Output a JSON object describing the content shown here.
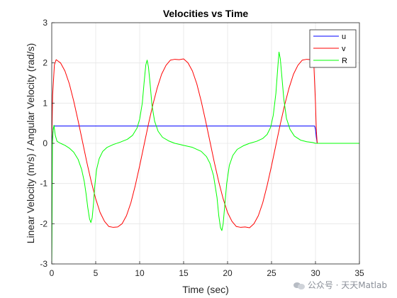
{
  "chart_data": {
    "type": "line",
    "title": "Velocities vs Time",
    "xlabel": "Time (sec)",
    "ylabel": "Linear Velocity (m/s) / Angular Velocity (rad/s)",
    "xlim": [
      0,
      35
    ],
    "ylim": [
      -3,
      3
    ],
    "xticks": [
      0,
      5,
      10,
      15,
      20,
      25,
      30,
      35
    ],
    "yticks": [
      -3,
      -2,
      -1,
      0,
      1,
      2,
      3
    ],
    "grid": true,
    "legend_position": "top-right",
    "series": [
      {
        "name": "u",
        "color": "#0000ff",
        "x": [
          0,
          0.2,
          0.3,
          29.9,
          30.0,
          30.1,
          30.2,
          35
        ],
        "y": [
          0,
          0.4,
          0.43,
          0.43,
          0.35,
          0.15,
          0.0,
          0.0
        ]
      },
      {
        "name": "v",
        "color": "#ff0000",
        "x": [
          0,
          0.1,
          0.3,
          0.5,
          1.0,
          1.5,
          2.0,
          2.5,
          3.0,
          3.5,
          4.0,
          4.5,
          5.0,
          5.5,
          6.0,
          6.5,
          7.0,
          7.5,
          8.0,
          8.5,
          9.0,
          9.5,
          10.0,
          10.5,
          11.0,
          11.5,
          12.0,
          12.5,
          13.0,
          13.5,
          14.0,
          14.5,
          15.0,
          15.5,
          16.0,
          16.5,
          17.0,
          17.5,
          18.0,
          18.5,
          19.0,
          19.5,
          20.0,
          20.5,
          21.0,
          21.5,
          22.0,
          22.5,
          23.0,
          23.5,
          24.0,
          24.5,
          25.0,
          25.5,
          26.0,
          26.5,
          27.0,
          27.5,
          28.0,
          28.5,
          29.0,
          29.5,
          29.8,
          30.0,
          30.1,
          30.2,
          35
        ],
        "y": [
          0,
          1.2,
          1.95,
          2.08,
          2.0,
          1.8,
          1.48,
          1.05,
          0.56,
          0.04,
          -0.48,
          -0.96,
          -1.38,
          -1.72,
          -1.94,
          -2.07,
          -2.09,
          -2.08,
          -2.0,
          -1.8,
          -1.48,
          -1.05,
          -0.56,
          -0.04,
          0.48,
          0.96,
          1.38,
          1.72,
          1.94,
          2.07,
          2.09,
          2.08,
          2.1,
          2.0,
          1.8,
          1.48,
          1.05,
          0.56,
          0.04,
          -0.48,
          -0.96,
          -1.38,
          -1.72,
          -1.94,
          -2.07,
          -2.09,
          -2.08,
          -2.1,
          -2.0,
          -1.8,
          -1.48,
          -1.05,
          -0.56,
          -0.04,
          0.48,
          0.96,
          1.38,
          1.72,
          1.94,
          2.07,
          2.09,
          2.08,
          2.05,
          1.0,
          0.3,
          0.0,
          0.0
        ]
      },
      {
        "name": "R",
        "color": "#00ff00",
        "x": [
          0,
          0.02,
          0.08,
          0.15,
          0.25,
          0.4,
          0.6,
          1.0,
          1.5,
          2.0,
          2.5,
          3.0,
          3.4,
          3.7,
          3.9,
          4.1,
          4.3,
          4.45,
          4.6,
          4.75,
          4.9,
          5.1,
          5.4,
          5.8,
          6.3,
          7.0,
          7.8,
          8.6,
          9.2,
          9.7,
          10.0,
          10.3,
          10.5,
          10.7,
          10.85,
          11.0,
          11.2,
          11.4,
          11.7,
          12.1,
          12.6,
          13.3,
          14.0,
          15.0,
          16.0,
          17.0,
          17.6,
          18.0,
          18.4,
          18.8,
          19.0,
          19.2,
          19.35,
          19.5,
          19.7,
          19.9,
          20.2,
          20.6,
          21.1,
          21.8,
          22.5,
          23.3,
          24.0,
          24.5,
          24.9,
          25.2,
          25.5,
          25.7,
          25.85,
          26.0,
          26.2,
          26.4,
          26.7,
          27.1,
          27.6,
          28.3,
          29.0,
          29.7,
          30.0,
          30.3,
          35
        ],
        "y": [
          -3.0,
          -2.5,
          0.0,
          0.3,
          0.45,
          0.2,
          0.05,
          0.0,
          -0.05,
          -0.12,
          -0.22,
          -0.4,
          -0.65,
          -0.95,
          -1.25,
          -1.6,
          -1.88,
          -1.97,
          -1.85,
          -1.5,
          -1.05,
          -0.65,
          -0.38,
          -0.2,
          -0.1,
          -0.03,
          0.03,
          0.1,
          0.2,
          0.38,
          0.6,
          1.0,
          1.5,
          1.95,
          2.07,
          1.9,
          1.45,
          0.95,
          0.55,
          0.3,
          0.15,
          0.06,
          0.0,
          -0.05,
          -0.1,
          -0.2,
          -0.33,
          -0.5,
          -0.8,
          -1.35,
          -1.8,
          -2.1,
          -2.17,
          -2.0,
          -1.5,
          -1.0,
          -0.55,
          -0.3,
          -0.15,
          -0.06,
          0.0,
          0.05,
          0.12,
          0.22,
          0.4,
          0.7,
          1.25,
          1.85,
          2.27,
          2.1,
          1.6,
          1.1,
          0.62,
          0.35,
          0.18,
          0.08,
          0.04,
          0.02,
          0.0,
          0.0,
          0.0
        ]
      }
    ]
  },
  "watermark": {
    "text": "公众号 · 天天Matlab",
    "icon": "wechat-icon"
  }
}
